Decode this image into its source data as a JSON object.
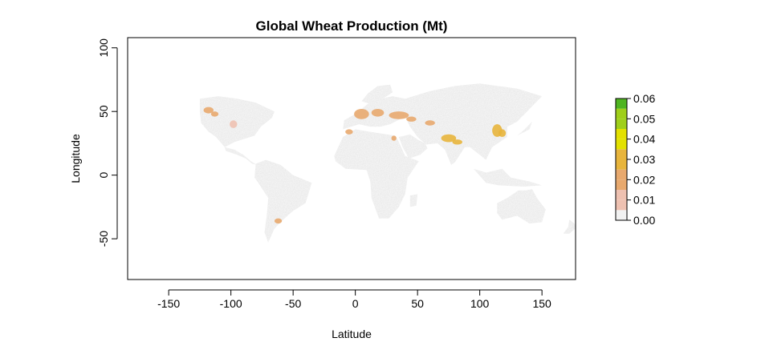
{
  "chart_data": {
    "type": "heatmap",
    "title": "Global Wheat Production (Mt)",
    "xlabel": "Latitude",
    "ylabel": "Longitude",
    "xlim": [
      -183,
      177
    ],
    "ylim": [
      -82,
      108
    ],
    "xticks": [
      -150,
      -100,
      -50,
      0,
      50,
      100,
      150
    ],
    "yticks": [
      100,
      50,
      0,
      -50
    ],
    "colorbar": {
      "breaks": [
        0.0,
        0.01,
        0.02,
        0.03,
        0.04,
        0.05,
        0.06
      ],
      "tick_labels": [
        "0.00",
        "0.01",
        "0.02",
        "0.03",
        "0.04",
        "0.05",
        "0.06"
      ],
      "colors": [
        "#f2f2f2",
        "#eec1b1",
        "#e8a96e",
        "#e8b53c",
        "#e3e100",
        "#9fcf1a",
        "#4fb521",
        "#0f9e18"
      ]
    },
    "colors": {
      "land_zero": "#ebebeb",
      "low": "#eec1b1",
      "mid": "#e8a96e",
      "high": "#e8b53c"
    },
    "hotspots": [
      {
        "lon": -118,
        "lat": 51,
        "rx": 4,
        "ry": 2.5,
        "value": 0.015
      },
      {
        "lon": -113,
        "lat": 48,
        "rx": 3,
        "ry": 2,
        "value": 0.012
      },
      {
        "lon": -98,
        "lat": 40,
        "rx": 3,
        "ry": 3,
        "value": 0.008
      },
      {
        "lon": -62,
        "lat": -36,
        "rx": 3,
        "ry": 2,
        "value": 0.012
      },
      {
        "lon": 5,
        "lat": 48,
        "rx": 6,
        "ry": 4,
        "value": 0.016
      },
      {
        "lon": 18,
        "lat": 49,
        "rx": 5,
        "ry": 3,
        "value": 0.013
      },
      {
        "lon": 35,
        "lat": 47,
        "rx": 8,
        "ry": 3,
        "value": 0.015
      },
      {
        "lon": 45,
        "lat": 44,
        "rx": 4,
        "ry": 2,
        "value": 0.018
      },
      {
        "lon": 60,
        "lat": 41,
        "rx": 4,
        "ry": 2,
        "value": 0.012
      },
      {
        "lon": 75,
        "lat": 29,
        "rx": 6,
        "ry": 3,
        "value": 0.022
      },
      {
        "lon": 82,
        "lat": 26,
        "rx": 4,
        "ry": 2,
        "value": 0.02
      },
      {
        "lon": 114,
        "lat": 35,
        "rx": 4,
        "ry": 5,
        "value": 0.025
      },
      {
        "lon": 118,
        "lat": 33,
        "rx": 3,
        "ry": 3,
        "value": 0.028
      },
      {
        "lon": -5,
        "lat": 34,
        "rx": 3,
        "ry": 2,
        "value": 0.01
      },
      {
        "lon": 31,
        "lat": 29,
        "rx": 2,
        "ry": 2,
        "value": 0.012
      }
    ],
    "grid": false,
    "legend": "right"
  }
}
